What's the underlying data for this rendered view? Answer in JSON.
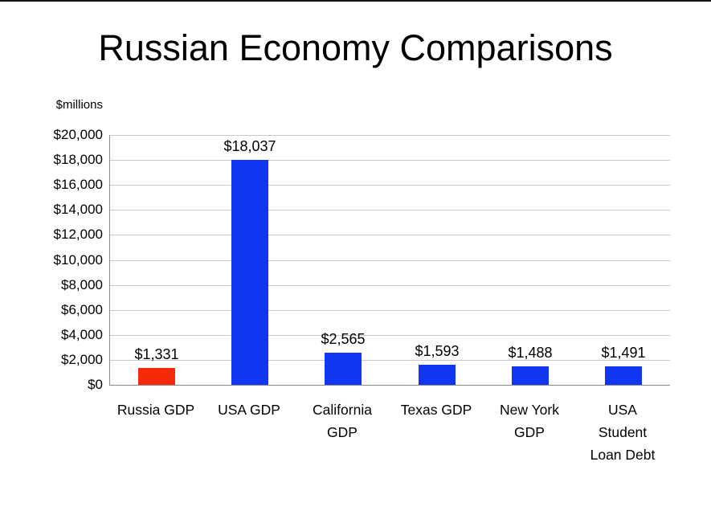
{
  "page": {
    "title": "Russian Economy Comparisons",
    "y_axis_unit": "$millions"
  },
  "colors": {
    "background": "#ffffff",
    "text": "#000000",
    "gridline": "#c9c9c9",
    "axis": "#8a8a8a",
    "russia_bar_red": "#f42a0b",
    "default_bar_blue": "#1337f0"
  },
  "chart_data": {
    "type": "bar",
    "title": "Russian Economy Comparisons",
    "xlabel": "",
    "ylabel": "$millions",
    "ylim": [
      0,
      20000
    ],
    "ytick_step": 2000,
    "ytick_labels_top_to_bottom": [
      "$20,000",
      "$18,000",
      "$16,000",
      "$14,000",
      "$12,000",
      "$10,000",
      "$8,000",
      "$6,000",
      "$4,000",
      "$2,000",
      "$0"
    ],
    "grid": true,
    "legend": "none",
    "categories": [
      "Russia GDP",
      "USA GDP",
      "California GDP",
      "Texas GDP",
      "New York GDP",
      "USA Student Loan Debt"
    ],
    "category_label_lines": [
      [
        "Russia GDP"
      ],
      [
        "USA GDP"
      ],
      [
        "California",
        "GDP"
      ],
      [
        "Texas GDP"
      ],
      [
        "New York",
        "GDP"
      ],
      [
        "USA",
        "Student",
        "Loan Debt"
      ]
    ],
    "values": [
      1331,
      18037,
      2565,
      1593,
      1488,
      1491
    ],
    "value_labels": [
      "$1,331",
      "$18,037",
      "$2,565",
      "$1,593",
      "$1,488",
      "$1,491"
    ],
    "bar_colors": [
      "#f42a0b",
      "#1337f0",
      "#1337f0",
      "#1337f0",
      "#1337f0",
      "#1337f0"
    ]
  }
}
